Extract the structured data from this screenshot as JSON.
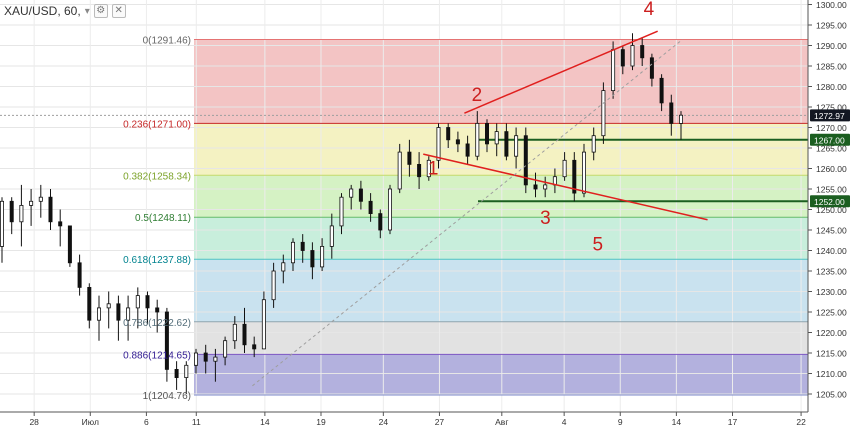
{
  "header": {
    "symbol_text": "XAU/USD, 60,",
    "collapse_icon": "chevron-down-icon",
    "settings_icon": "gear-icon",
    "close_icon": "close-icon"
  },
  "chart_data": {
    "type": "line",
    "symbol": "XAU/USD",
    "timeframe": "60",
    "price_axis": {
      "ylim": [
        1205,
        1300
      ],
      "ticks": [
        1205,
        1210,
        1215,
        1220,
        1225,
        1230,
        1235,
        1240,
        1245,
        1250,
        1255,
        1260,
        1265,
        1270,
        1275,
        1280,
        1285,
        1290,
        1295,
        1300
      ],
      "tick_labels": [
        "1205.00",
        "1210.00",
        "1215.00",
        "1220.00",
        "1225.00",
        "1230.00",
        "1235.00",
        "1240.00",
        "1245.00",
        "1250.00",
        "1255.00",
        "1260.00",
        "1265.00",
        "1270.00",
        "1275.00",
        "1280.00",
        "1285.00",
        "1290.00",
        "1295.00",
        "1300.00"
      ]
    },
    "time_axis": {
      "labels": [
        "28",
        "Июл",
        "6",
        "11",
        "14",
        "19",
        "24",
        "27",
        "Авг",
        "4",
        "9",
        "14",
        "17",
        "22"
      ]
    },
    "price_badges": [
      {
        "value": 1272.97,
        "label": "1272.97",
        "bg": "#131722",
        "fg": "#ffffff"
      },
      {
        "value": 1267.0,
        "label": "1267.00",
        "bg": "#1b5e20",
        "fg": "#ffffff"
      },
      {
        "value": 1252.0,
        "label": "1252.00",
        "bg": "#1b5e20",
        "fg": "#ffffff"
      }
    ],
    "fibonacci": {
      "levels": [
        {
          "ratio": "0",
          "price": 1291.46,
          "label": "0(1291.46)",
          "color": "#e57373",
          "fill": "#f3c4c4",
          "text_color": "#666666"
        },
        {
          "ratio": "0.236",
          "price": 1271.0,
          "label": "0.236(1271.00)",
          "color": "#c62828",
          "fill": "#f4f2c2",
          "text_color": "#c62828"
        },
        {
          "ratio": "0.382",
          "price": 1258.34,
          "label": "0.382(1258.34)",
          "color": "#c5d96b",
          "fill": "#d5f2c4",
          "text_color": "#7ca32a"
        },
        {
          "ratio": "0.5",
          "price": 1248.11,
          "label": "0.5(1248.11)",
          "color": "#66bb6a",
          "fill": "#c8eedc",
          "text_color": "#2e7d32"
        },
        {
          "ratio": "0.618",
          "price": 1237.88,
          "label": "0.618(1237.88)",
          "color": "#4fc3c3",
          "fill": "#c9e2ef",
          "text_color": "#00838f"
        },
        {
          "ratio": "0.786",
          "price": 1222.62,
          "label": "0.786(1222.62)",
          "color": "#90a4ae",
          "fill": "#e2e2e2",
          "text_color": "#546e7a"
        },
        {
          "ratio": "0.886",
          "price": 1214.65,
          "label": "0.886(1214.65)",
          "color": "#7e57c2",
          "fill": "#b3b1de",
          "text_color": "#311b92"
        },
        {
          "ratio": "1",
          "price": 1204.76,
          "label": "1(1204.76)",
          "color": "#7986cb",
          "fill": "",
          "text_color": "#555555"
        }
      ]
    },
    "horizontal_lines": [
      {
        "price": 1267.0,
        "color": "#1b5e20"
      },
      {
        "price": 1252.0,
        "color": "#1b5e20"
      },
      {
        "price": 1272.97,
        "color": "#9e9e9e"
      }
    ],
    "trend_lines": [
      {
        "from": [
          37.0,
          1273.5
        ],
        "to": [
          52.5,
          1293.5
        ],
        "color": "#e0201e"
      },
      {
        "from": [
          33.7,
          1263.5
        ],
        "to": [
          56.5,
          1247.5
        ],
        "color": "#e0201e"
      },
      {
        "from": [
          20.0,
          1207.0
        ],
        "to": [
          54.5,
          1291.5
        ],
        "color": "#9e9e9e",
        "dashed": true
      }
    ],
    "wave_labels": [
      {
        "text": "1",
        "x": 34.5,
        "y": 1258.5,
        "color": "#cc1f1f"
      },
      {
        "text": "2",
        "x": 38.0,
        "y": 1276.5,
        "color": "#cc1f1f"
      },
      {
        "text": "3",
        "x": 43.5,
        "y": 1246.5,
        "color": "#cc1f1f"
      },
      {
        "text": "4",
        "x": 51.8,
        "y": 1297.5,
        "color": "#cc1f1f"
      },
      {
        "text": "5",
        "x": 47.7,
        "y": 1240.0,
        "color": "#cc1f1f"
      }
    ],
    "candles_ohlc": [
      [
        1241,
        1253,
        1237,
        1252
      ],
      [
        1252,
        1253,
        1244,
        1247
      ],
      [
        1247,
        1256,
        1241,
        1251
      ],
      [
        1251,
        1255,
        1246,
        1252
      ],
      [
        1252,
        1256,
        1248,
        1253
      ],
      [
        1253,
        1255,
        1245,
        1247
      ],
      [
        1247,
        1250,
        1241,
        1246
      ],
      [
        1246,
        1246,
        1236,
        1237
      ],
      [
        1237,
        1239,
        1229,
        1231
      ],
      [
        1231,
        1232,
        1221,
        1223
      ],
      [
        1223,
        1229,
        1218,
        1226
      ],
      [
        1226,
        1230,
        1221,
        1227
      ],
      [
        1227,
        1229,
        1218,
        1223
      ],
      [
        1223,
        1229,
        1218,
        1226
      ],
      [
        1226,
        1231,
        1221,
        1229
      ],
      [
        1229,
        1230,
        1222,
        1226
      ],
      [
        1226,
        1228,
        1220,
        1225
      ],
      [
        1225,
        1226,
        1208,
        1211
      ],
      [
        1211,
        1213,
        1206,
        1209
      ],
      [
        1209,
        1213,
        1205,
        1212
      ],
      [
        1212,
        1216,
        1210,
        1215
      ],
      [
        1215,
        1217,
        1210,
        1213
      ],
      [
        1213,
        1216,
        1208,
        1214
      ],
      [
        1214,
        1219,
        1212,
        1218
      ],
      [
        1218,
        1224,
        1216,
        1222
      ],
      [
        1222,
        1226,
        1215,
        1217
      ],
      [
        1217,
        1219,
        1214,
        1216
      ],
      [
        1216,
        1230,
        1216,
        1228
      ],
      [
        1228,
        1237,
        1226,
        1235
      ],
      [
        1235,
        1239,
        1232,
        1237
      ],
      [
        1237,
        1243,
        1235,
        1242
      ],
      [
        1242,
        1244,
        1237,
        1240
      ],
      [
        1240,
        1242,
        1233,
        1236
      ],
      [
        1236,
        1243,
        1235,
        1241
      ],
      [
        1241,
        1249,
        1238,
        1246
      ],
      [
        1246,
        1254,
        1244,
        1253
      ],
      [
        1253,
        1256,
        1250,
        1255
      ],
      [
        1255,
        1257,
        1250,
        1252
      ],
      [
        1252,
        1254,
        1247,
        1249
      ],
      [
        1249,
        1250,
        1243,
        1245
      ],
      [
        1245,
        1256,
        1244,
        1255
      ],
      [
        1255,
        1266,
        1254,
        1264
      ],
      [
        1264,
        1267,
        1258,
        1261
      ],
      [
        1261,
        1264,
        1255,
        1258
      ],
      [
        1258,
        1263,
        1257,
        1262
      ],
      [
        1262,
        1271,
        1260,
        1270
      ],
      [
        1270,
        1271,
        1265,
        1267
      ],
      [
        1267,
        1269,
        1264,
        1266
      ],
      [
        1266,
        1268,
        1261,
        1263
      ],
      [
        1263,
        1274,
        1262,
        1271
      ],
      [
        1271,
        1272,
        1264,
        1266
      ],
      [
        1266,
        1271,
        1263,
        1269
      ],
      [
        1269,
        1271,
        1262,
        1263
      ],
      [
        1263,
        1270,
        1260,
        1268
      ],
      [
        1268,
        1270,
        1254,
        1256
      ],
      [
        1256,
        1259,
        1253,
        1255
      ],
      [
        1255,
        1258,
        1253,
        1256
      ],
      [
        1256,
        1260,
        1254,
        1258
      ],
      [
        1258,
        1264,
        1257,
        1262
      ],
      [
        1262,
        1264,
        1252,
        1254
      ],
      [
        1254,
        1266,
        1253,
        1264
      ],
      [
        1264,
        1270,
        1262,
        1268
      ],
      [
        1268,
        1281,
        1266,
        1279
      ],
      [
        1279,
        1291,
        1277,
        1289
      ],
      [
        1289,
        1290,
        1283,
        1285
      ],
      [
        1285,
        1293,
        1284,
        1290
      ],
      [
        1290,
        1292,
        1285,
        1287
      ],
      [
        1287,
        1288,
        1280,
        1282
      ],
      [
        1282,
        1283,
        1274,
        1276
      ],
      [
        1276,
        1278,
        1268,
        1271
      ],
      [
        1271,
        1274,
        1267,
        1273
      ]
    ]
  }
}
